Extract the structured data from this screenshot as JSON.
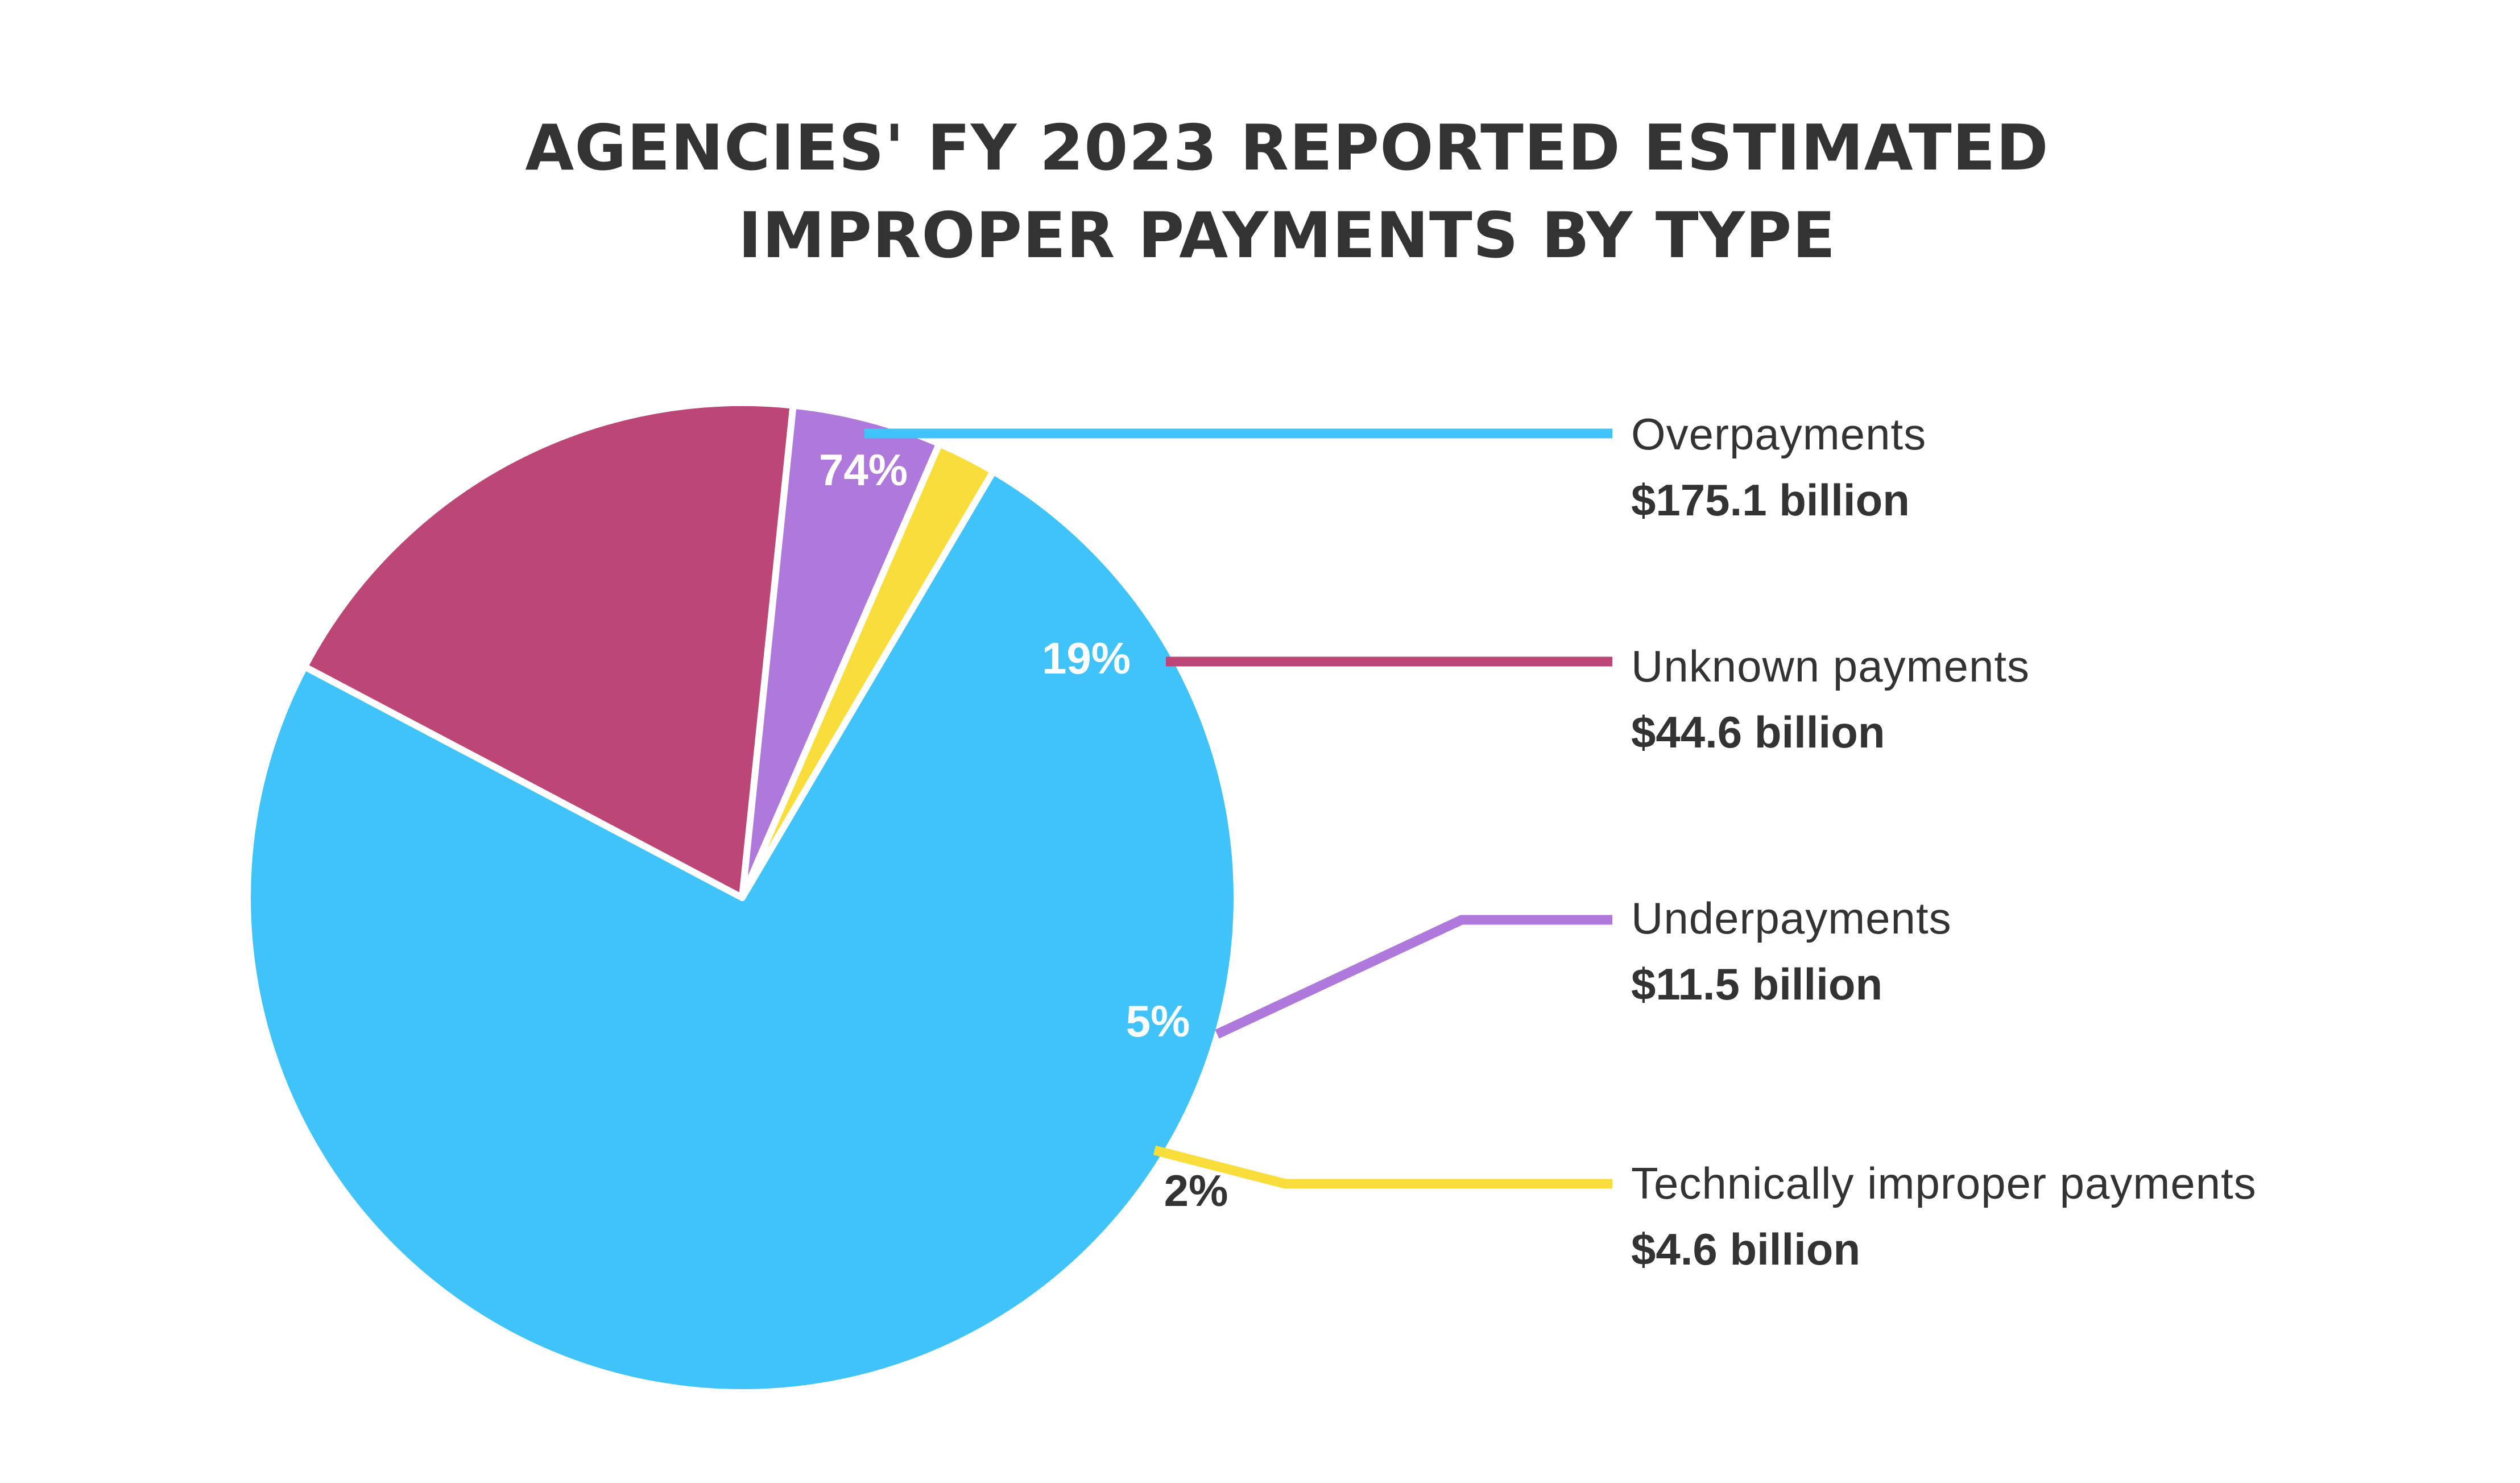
{
  "chart_data": {
    "type": "pie",
    "title": [
      "AGENCIES' FY 2023 REPORTED ESTIMATED",
      "IMPROPER PAYMENTS BY TYPE"
    ],
    "slices": [
      {
        "name": "Overpayments",
        "value_text": "$175.1 billion",
        "value": 175.1,
        "percent": 74,
        "percent_label": "74%",
        "color": "#40C3F9",
        "label_color": "#FFFFFF"
      },
      {
        "name": "Unknown payments",
        "value_text": "$44.6 billion",
        "value": 44.6,
        "percent": 19,
        "percent_label": "19%",
        "color": "#BC4675",
        "label_color": "#FFFFFF"
      },
      {
        "name": "Underpayments",
        "value_text": "$11.5 billion",
        "value": 11.5,
        "percent": 5,
        "percent_label": "5%",
        "color": "#AE79DB",
        "label_color": "#FFFFFF"
      },
      {
        "name": "Technically improper payments",
        "value_text": "$4.6 billion",
        "value": 4.6,
        "percent": 2,
        "percent_label": "2%",
        "color": "#F9DD3B",
        "label_color": "#333333"
      }
    ],
    "legend_placement": "right"
  }
}
